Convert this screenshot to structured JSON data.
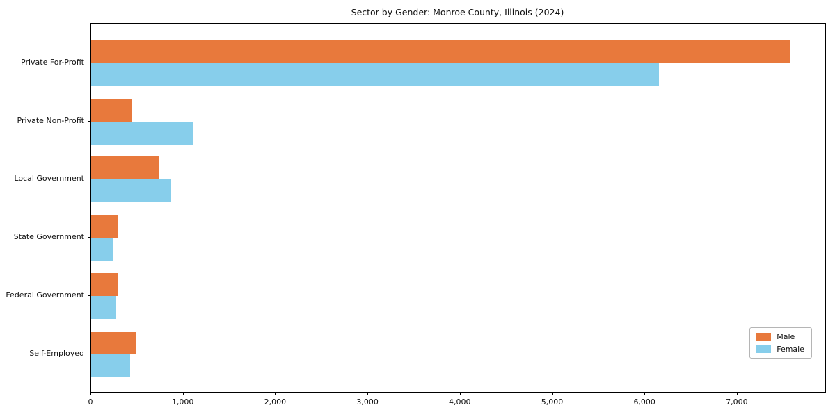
{
  "title": "Sector by Gender: Monroe County, Illinois (2024)",
  "accent_colors": {
    "male": "#e8793c",
    "female": "#87ceeb"
  },
  "chart_data": {
    "type": "bar",
    "orientation": "horizontal",
    "title": "Sector by Gender: Monroe County, Illinois (2024)",
    "categories": [
      "Private For-Profit",
      "Private Non-Profit",
      "Local Government",
      "State Government",
      "Federal Government",
      "Self-Employed"
    ],
    "series": [
      {
        "name": "Male",
        "color": "#e8793c",
        "values": [
          7575,
          440,
          740,
          285,
          290,
          480
        ]
      },
      {
        "name": "Female",
        "color": "#87ceeb",
        "values": [
          6150,
          1100,
          865,
          235,
          265,
          425
        ]
      }
    ],
    "xlabel": "",
    "ylabel": "",
    "xlim": [
      0,
      7950
    ],
    "x_ticks": [
      {
        "value": 0,
        "label": "0"
      },
      {
        "value": 1000,
        "label": "1,000"
      },
      {
        "value": 2000,
        "label": "2,000"
      },
      {
        "value": 3000,
        "label": "3,000"
      },
      {
        "value": 4000,
        "label": "4,000"
      },
      {
        "value": 5000,
        "label": "5,000"
      },
      {
        "value": 6000,
        "label": "6,000"
      },
      {
        "value": 7000,
        "label": "7,000"
      }
    ],
    "grid": false,
    "legend_position": "lower right"
  }
}
